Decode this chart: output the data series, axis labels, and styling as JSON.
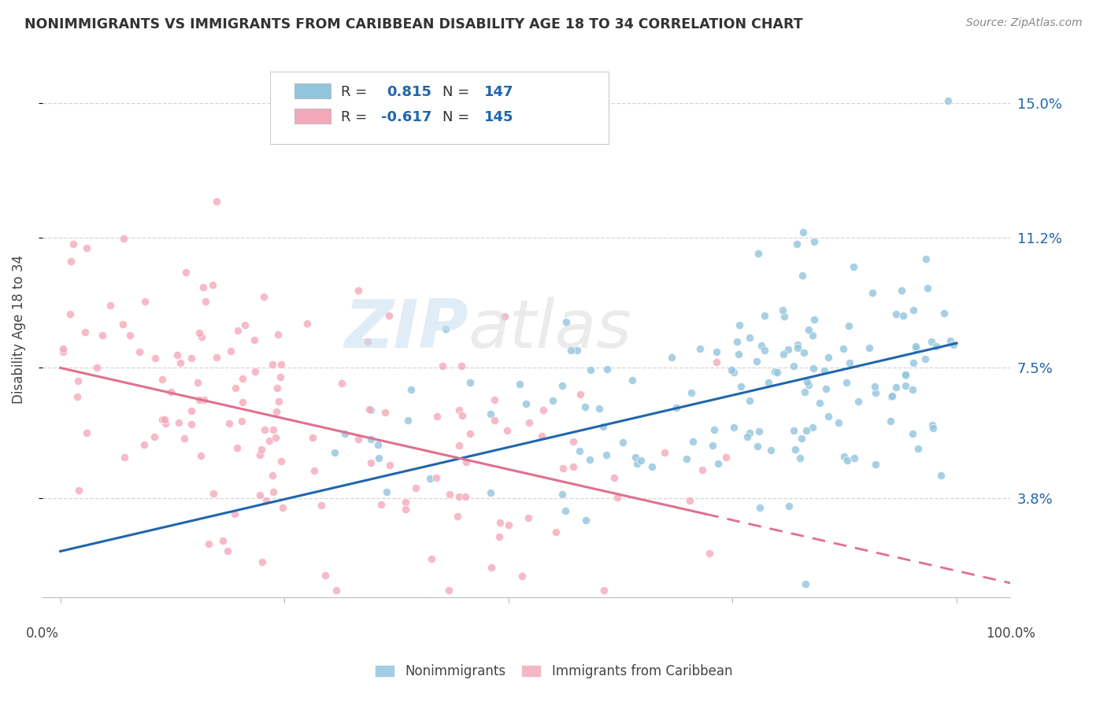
{
  "title": "NONIMMIGRANTS VS IMMIGRANTS FROM CARIBBEAN DISABILITY AGE 18 TO 34 CORRELATION CHART",
  "source": "Source: ZipAtlas.com",
  "ylabel": "Disability Age 18 to 34",
  "yticks": [
    "3.8%",
    "7.5%",
    "11.2%",
    "15.0%"
  ],
  "ytick_vals": [
    0.038,
    0.075,
    0.112,
    0.15
  ],
  "ymin": 0.01,
  "ymax": 0.162,
  "xmin": -0.02,
  "xmax": 1.06,
  "legend_labels": [
    "Nonimmigrants",
    "Immigrants from Caribbean"
  ],
  "nonimmigrant_color": "#92c5de",
  "immigrant_color": "#f4a9bb",
  "trend_nonimmigrant_color": "#2166ac",
  "trend_immigrant_color": "#e07090",
  "R_nonimmigrant": 0.815,
  "N_nonimmigrant": 147,
  "R_immigrant": -0.617,
  "N_immigrant": 145,
  "ni_trend_x0": 0.0,
  "ni_trend_y0": 0.023,
  "ni_trend_x1": 1.0,
  "ni_trend_y1": 0.082,
  "im_trend_x0": 0.0,
  "im_trend_y0": 0.075,
  "im_trend_x1_solid": 0.72,
  "im_trend_x1": 1.06,
  "im_trend_y1": 0.014,
  "seed": 42
}
